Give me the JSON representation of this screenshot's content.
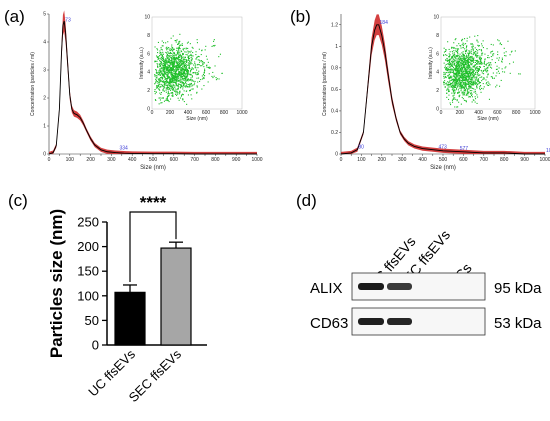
{
  "panels": {
    "a": "(a)",
    "b": "(b)",
    "c": "(c)",
    "d": "(d)"
  },
  "chart_data": [
    {
      "id": "a",
      "type": "line",
      "xlabel": "Size (nm)",
      "ylabel": "Concentration (particles / ml)",
      "xlim": [
        0,
        1000
      ],
      "ylim": [
        0,
        5
      ],
      "xticks": [
        "0",
        "50",
        "100",
        "150",
        "200",
        "250",
        "300",
        "350",
        "400",
        "450",
        "500",
        "550",
        "600",
        "650",
        "700",
        "750",
        "800",
        "850",
        "900",
        "950",
        "1000"
      ],
      "yticks": [
        "0",
        "1",
        "2",
        "3",
        "4",
        "5"
      ],
      "annotations": [
        {
          "x": 73,
          "y": 4.7,
          "text": "73"
        },
        {
          "x": 334,
          "y": 0.12,
          "text": "334"
        }
      ],
      "series": [
        {
          "x": [
            0,
            20,
            35,
            50,
            60,
            67,
            73,
            80,
            90,
            100,
            110,
            120,
            135,
            150,
            165,
            180,
            200,
            220,
            250,
            280,
            320,
            360,
            400,
            500,
            600,
            700,
            800,
            900,
            1000
          ],
          "y": [
            0,
            0.05,
            0.3,
            1.6,
            3.6,
            4.6,
            4.75,
            4.3,
            3.2,
            2.1,
            1.6,
            1.45,
            1.4,
            1.3,
            1.1,
            0.85,
            0.55,
            0.32,
            0.15,
            0.08,
            0.05,
            0.03,
            0.02,
            0.01,
            0.01,
            0,
            0,
            0,
            0
          ]
        }
      ],
      "inset": {
        "type": "scatter",
        "xlabel": "Size (nm)",
        "ylabel": "Intensity (a.u.)",
        "xticks": [
          "0",
          "100",
          "200",
          "300",
          "400",
          "500",
          "600",
          "700",
          "800",
          "900",
          "1000"
        ],
        "yticks": [
          "0",
          "1",
          "2",
          "3",
          "4",
          "5",
          "6",
          "7",
          "8",
          "9",
          "10"
        ]
      }
    },
    {
      "id": "b",
      "type": "line",
      "xlabel": "Size (nm)",
      "ylabel": "Concentration (particles / ml)",
      "xlim": [
        0,
        1000
      ],
      "ylim": [
        0,
        1.3
      ],
      "xticks": [
        "0",
        "50",
        "100",
        "150",
        "200",
        "250",
        "300",
        "350",
        "400",
        "450",
        "500",
        "550",
        "600",
        "650",
        "700",
        "750",
        "800",
        "850",
        "900",
        "950",
        "1000"
      ],
      "yticks": [
        "0",
        "0.2",
        "0.4",
        "0.6",
        "0.8",
        "1",
        "1.2"
      ],
      "annotations": [
        {
          "x": 184,
          "y": 1.2,
          "text": "184"
        },
        {
          "x": 80,
          "y": 0.04,
          "text": "80"
        },
        {
          "x": 473,
          "y": 0.04,
          "text": "473"
        },
        {
          "x": 577,
          "y": 0.03,
          "text": "577"
        },
        {
          "x": 1000,
          "y": 0.01,
          "text": "1000"
        }
      ],
      "series": [
        {
          "x": [
            0,
            50,
            80,
            110,
            130,
            150,
            165,
            175,
            185,
            200,
            215,
            230,
            250,
            270,
            290,
            310,
            330,
            360,
            400,
            450,
            500,
            600,
            700,
            800,
            900,
            1000
          ],
          "y": [
            0,
            0.01,
            0.04,
            0.2,
            0.6,
            1.0,
            1.15,
            1.2,
            1.2,
            1.1,
            0.95,
            0.75,
            0.5,
            0.33,
            0.2,
            0.14,
            0.1,
            0.07,
            0.05,
            0.04,
            0.03,
            0.02,
            0.01,
            0.01,
            0,
            0
          ]
        }
      ],
      "inset": {
        "type": "scatter",
        "xlabel": "Size (nm)",
        "ylabel": "Intensity (a.u.)",
        "xticks": [
          "0",
          "100",
          "200",
          "300",
          "400",
          "500",
          "600",
          "700",
          "800",
          "900",
          "1000"
        ],
        "yticks": [
          "0",
          "1",
          "2",
          "3",
          "4",
          "5",
          "6",
          "7",
          "8",
          "9",
          "10"
        ]
      }
    },
    {
      "id": "c",
      "type": "bar",
      "categories": [
        "UC ffsEVs",
        "SEC ffsEVs"
      ],
      "values": [
        107,
        197
      ],
      "errors": [
        15,
        12
      ],
      "colors": [
        "#000000",
        "#a6a6a6"
      ],
      "ylabel": "Particles size (nm)",
      "ylim": [
        0,
        250
      ],
      "yticks": [
        "0",
        "50",
        "100",
        "150",
        "200",
        "250"
      ],
      "significance": "****"
    }
  ],
  "western_blot": {
    "lanes": [
      "UC ffsEVs",
      "SEC ffsEVs",
      "FCs"
    ],
    "rows": [
      {
        "label": "ALIX",
        "weight": "95 kDa"
      },
      {
        "label": "CD63",
        "weight": "53 kDa"
      }
    ]
  },
  "colors": {
    "nta_band": "#cc1f1f",
    "nta_line": "#000000",
    "scatter": "#1fbf2a",
    "annotation": "#3b3bd6"
  }
}
